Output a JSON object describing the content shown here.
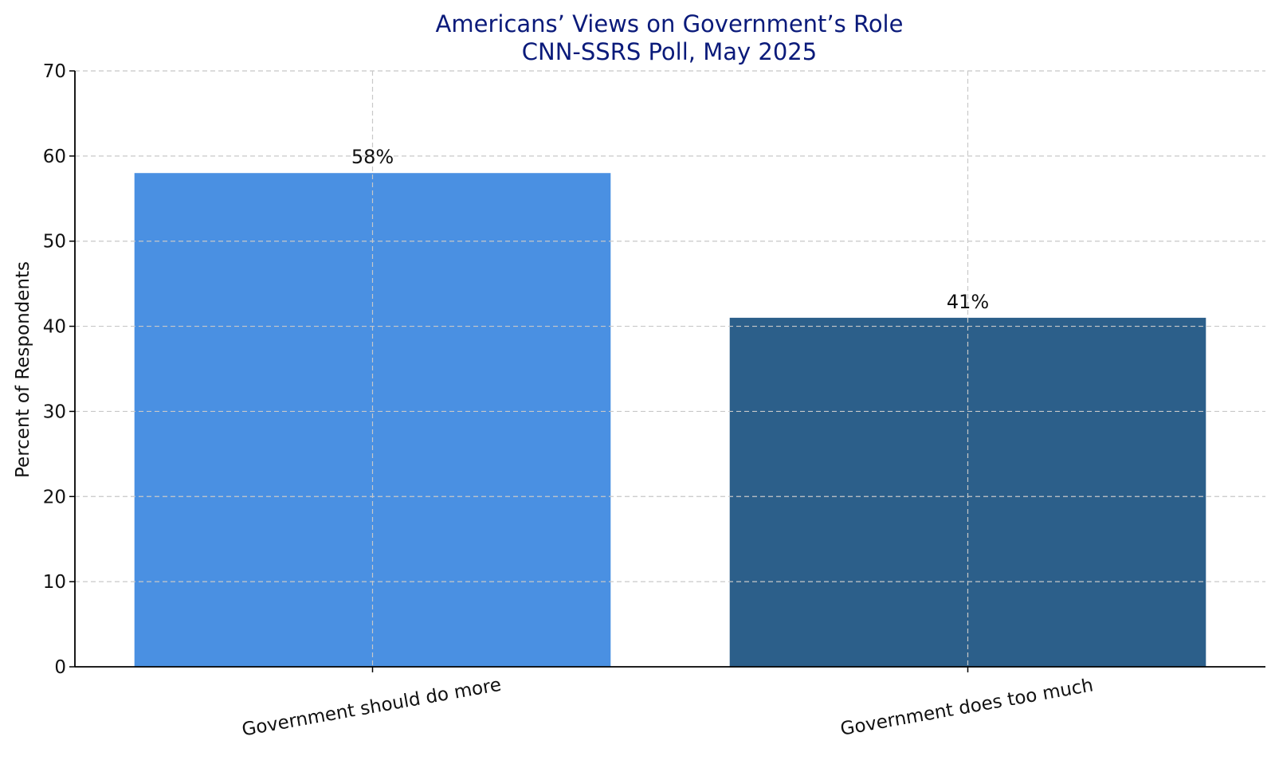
{
  "chart_data": {
    "type": "bar",
    "title": "Americans’ Views on Government’s Role",
    "subtitle": "CNN-SSRS Poll, May 2025",
    "xlabel": "",
    "ylabel": "Percent of Respondents",
    "categories": [
      "Government should do more",
      "Government does too much"
    ],
    "values": [
      58,
      41
    ],
    "value_labels": [
      "58%",
      "41%"
    ],
    "colors": [
      "#4a90e2",
      "#2c5f8a"
    ],
    "ylim": [
      0,
      70
    ],
    "yticks": [
      0,
      10,
      20,
      30,
      40,
      50,
      60,
      70
    ],
    "grid": true,
    "legend": "none"
  }
}
